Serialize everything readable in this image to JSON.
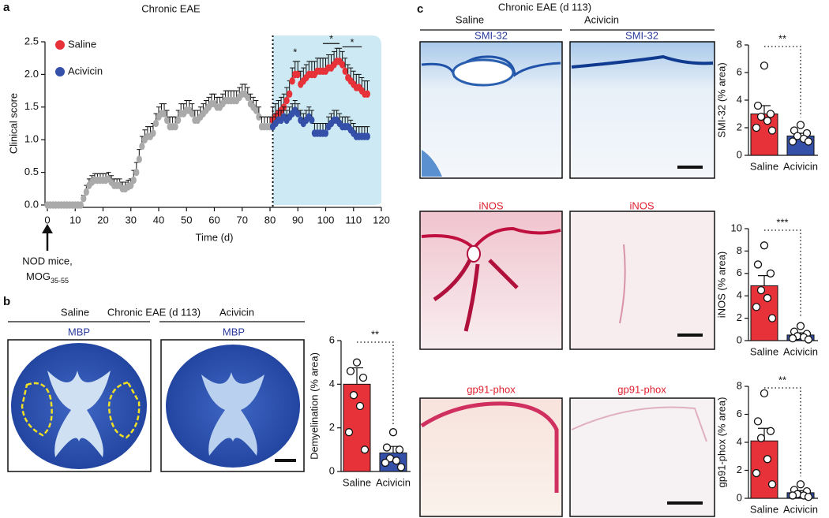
{
  "panel_labels": [
    "a",
    "b",
    "c"
  ],
  "panel_a": {
    "annotation": "NOD mice,",
    "antigen": "MOG",
    "antigen_sub": "35-55"
  },
  "panel_b": {
    "title": "Chronic EAE (d 113)",
    "groups": [
      "Saline",
      "Acivicin"
    ],
    "stain": "MBP"
  },
  "panel_c": {
    "title": "Chronic EAE (d 113)",
    "groups": [
      "Saline",
      "Acivicin"
    ],
    "stains": [
      "SMI-32",
      "iNOS",
      "gp91-phox"
    ]
  },
  "chart_data": [
    {
      "type": "line",
      "title": "Chronic EAE",
      "xlabel": "Time (d)",
      "ylabel": "Clinical score",
      "xlim": [
        0,
        120
      ],
      "xticks": [
        0,
        10,
        20,
        30,
        40,
        50,
        60,
        70,
        80,
        90,
        100,
        110,
        120
      ],
      "ylim": [
        0,
        2.5
      ],
      "yticks": [
        {
          "value": 0,
          "label": "0.0"
        },
        0.5,
        {
          "value": 1,
          "label": "1.0"
        },
        1.5,
        {
          "value": 2,
          "label": "2.0"
        },
        2.5
      ],
      "shaded": [
        81,
        120
      ],
      "significance": [
        {
          "label": "*",
          "x": [
            89,
            89
          ]
        },
        {
          "label": "*",
          "x": [
            99,
            105
          ]
        },
        {
          "label": "*",
          "x": [
            106,
            113
          ]
        }
      ],
      "series": [
        {
          "color": "#aaaaaa",
          "x": [
            0,
            1,
            2,
            3,
            4,
            5,
            6,
            7,
            8,
            9,
            10,
            11,
            12,
            13,
            14,
            15,
            16,
            17,
            18,
            19,
            20,
            21,
            22,
            23,
            24,
            25,
            26,
            27,
            28,
            29,
            30,
            31,
            32,
            33,
            34,
            35,
            36,
            37,
            38,
            39,
            40,
            41,
            42,
            43,
            44,
            45,
            46,
            47,
            48,
            49,
            50,
            51,
            52,
            53,
            54,
            55,
            56,
            57,
            58,
            59,
            60,
            61,
            62,
            63,
            64,
            65,
            66,
            67,
            68,
            69,
            70,
            71,
            72,
            73,
            74,
            75,
            76,
            77,
            78,
            79,
            80
          ],
          "values": [
            0,
            0,
            0,
            0,
            0,
            0,
            0,
            0,
            0,
            0,
            0,
            0,
            0,
            0.1,
            0.2,
            0.3,
            0.35,
            0.38,
            0.38,
            0.38,
            0.38,
            0.38,
            0.4,
            0.35,
            0.3,
            0.3,
            0.3,
            0.25,
            0.25,
            0.28,
            0.3,
            0.38,
            0.5,
            0.7,
            0.9,
            1.0,
            1.05,
            1.05,
            1.1,
            1.25,
            1.35,
            1.4,
            1.4,
            1.3,
            1.2,
            1.2,
            1.2,
            1.3,
            1.4,
            1.4,
            1.45,
            1.45,
            1.4,
            1.3,
            1.3,
            1.35,
            1.4,
            1.45,
            1.5,
            1.55,
            1.55,
            1.5,
            1.5,
            1.55,
            1.6,
            1.6,
            1.6,
            1.6,
            1.6,
            1.65,
            1.7,
            1.7,
            1.65,
            1.55,
            1.5,
            1.45,
            1.35,
            1.2,
            1.2,
            1.2,
            1.2
          ],
          "errors": [
            0,
            0,
            0,
            0,
            0,
            0,
            0,
            0,
            0,
            0,
            0,
            0,
            0,
            0.05,
            0.1,
            0.1,
            0.1,
            0.1,
            0.1,
            0.1,
            0.1,
            0.1,
            0.1,
            0.1,
            0.1,
            0.1,
            0.1,
            0.1,
            0.1,
            0.1,
            0.1,
            0.15,
            0.15,
            0.15,
            0.15,
            0.15,
            0.15,
            0.15,
            0.15,
            0.15,
            0.15,
            0.15,
            0.15,
            0.15,
            0.15,
            0.15,
            0.15,
            0.15,
            0.15,
            0.15,
            0.15,
            0.15,
            0.15,
            0.15,
            0.15,
            0.15,
            0.15,
            0.15,
            0.15,
            0.15,
            0.15,
            0.15,
            0.15,
            0.15,
            0.15,
            0.15,
            0.15,
            0.15,
            0.15,
            0.15,
            0.15,
            0.15,
            0.15,
            0.15,
            0.15,
            0.15,
            0.15,
            0.15,
            0.15,
            0.15,
            0.15
          ]
        },
        {
          "name": "Saline",
          "color": "#e8323a",
          "x": [
            81,
            82,
            83,
            84,
            85,
            86,
            87,
            88,
            89,
            90,
            91,
            92,
            93,
            94,
            95,
            96,
            97,
            98,
            99,
            100,
            101,
            102,
            103,
            104,
            105,
            106,
            107,
            108,
            109,
            110,
            111,
            112,
            113,
            114,
            115
          ],
          "values": [
            1.3,
            1.35,
            1.4,
            1.45,
            1.5,
            1.6,
            1.7,
            1.9,
            2.0,
            2.0,
            1.85,
            1.9,
            1.95,
            2.0,
            2.0,
            2.0,
            2.05,
            2.05,
            2.05,
            2.05,
            2.1,
            2.1,
            2.15,
            2.2,
            2.2,
            2.15,
            2.05,
            1.95,
            1.9,
            1.85,
            1.8,
            1.8,
            1.75,
            1.7,
            1.7
          ],
          "errors": [
            0.2,
            0.2,
            0.2,
            0.2,
            0.2,
            0.2,
            0.2,
            0.2,
            0.2,
            0.2,
            0.2,
            0.2,
            0.2,
            0.2,
            0.2,
            0.2,
            0.2,
            0.2,
            0.2,
            0.2,
            0.2,
            0.2,
            0.2,
            0.2,
            0.2,
            0.2,
            0.2,
            0.2,
            0.2,
            0.2,
            0.2,
            0.2,
            0.2,
            0.2,
            0.2
          ]
        },
        {
          "name": "Acivicin",
          "color": "#3550a8",
          "x": [
            81,
            82,
            83,
            84,
            85,
            86,
            87,
            88,
            89,
            90,
            91,
            92,
            93,
            94,
            95,
            96,
            97,
            98,
            99,
            100,
            101,
            102,
            103,
            104,
            105,
            106,
            107,
            108,
            109,
            110,
            111,
            112,
            113,
            114,
            115
          ],
          "values": [
            1.2,
            1.25,
            1.3,
            1.3,
            1.35,
            1.3,
            1.35,
            1.4,
            1.45,
            1.4,
            1.3,
            1.25,
            1.3,
            1.35,
            1.3,
            1.1,
            1.1,
            1.1,
            1.1,
            1.1,
            1.2,
            1.25,
            1.3,
            1.3,
            1.25,
            1.2,
            1.2,
            1.2,
            1.15,
            1.1,
            1.05,
            1.05,
            1.05,
            1.05,
            1.05
          ],
          "errors": [
            0.15,
            0.15,
            0.15,
            0.15,
            0.15,
            0.15,
            0.15,
            0.15,
            0.15,
            0.15,
            0.15,
            0.15,
            0.15,
            0.15,
            0.15,
            0.15,
            0.15,
            0.15,
            0.15,
            0.15,
            0.15,
            0.15,
            0.15,
            0.15,
            0.15,
            0.15,
            0.15,
            0.15,
            0.15,
            0.15,
            0.15,
            0.15,
            0.15,
            0.15,
            0.15
          ]
        }
      ]
    },
    {
      "type": "bar",
      "ylabel": "Demyelination (% area)",
      "categories": [
        "Saline",
        "Acivicin"
      ],
      "values": [
        4.0,
        0.85
      ],
      "errors": [
        0.75,
        0.3
      ],
      "points": [
        [
          5.0,
          4.6,
          4.3,
          3.5,
          3.0,
          1.8,
          1.0
        ],
        [
          1.8,
          1.1,
          1.0,
          0.6,
          0.5,
          0.4,
          0.2
        ]
      ],
      "colors": [
        "#e8323a",
        "#3550a8"
      ],
      "ylim": [
        0,
        6
      ],
      "yticks": [
        0,
        2,
        4,
        6
      ],
      "significance": "**"
    },
    {
      "type": "bar",
      "ylabel": "SMI-32 (% area)",
      "categories": [
        "Saline",
        "Acivicin"
      ],
      "values": [
        3.0,
        1.4
      ],
      "errors": [
        0.6,
        0.2
      ],
      "points": [
        [
          6.5,
          3.6,
          3.0,
          2.8,
          2.5,
          2.0,
          1.8
        ],
        [
          2.2,
          1.8,
          1.6,
          1.4,
          1.2,
          1.0,
          1.0
        ]
      ],
      "colors": [
        "#e8323a",
        "#3550a8"
      ],
      "ylim": [
        0,
        8
      ],
      "yticks": [
        0,
        2,
        4,
        6,
        8
      ],
      "significance": "**"
    },
    {
      "type": "bar",
      "ylabel": "iNOS (% area)",
      "categories": [
        "Saline",
        "Acivicin"
      ],
      "values": [
        4.9,
        0.5
      ],
      "errors": [
        0.9,
        0.2
      ],
      "points": [
        [
          8.5,
          6.8,
          6.0,
          4.5,
          3.8,
          3.0,
          2.0
        ],
        [
          1.3,
          0.8,
          0.6,
          0.4,
          0.3,
          0.2,
          0.1
        ]
      ],
      "colors": [
        "#e8323a",
        "#3550a8"
      ],
      "ylim": [
        0,
        10
      ],
      "yticks": [
        0,
        2,
        4,
        6,
        8,
        10
      ],
      "significance": "***"
    },
    {
      "type": "bar",
      "ylabel": "gp91-phox (% area)",
      "categories": [
        "Saline",
        "Acivicin"
      ],
      "values": [
        4.1,
        0.4
      ],
      "errors": [
        0.9,
        0.15
      ],
      "points": [
        [
          7.5,
          5.5,
          4.8,
          4.3,
          2.8,
          1.8,
          1.0
        ],
        [
          1.0,
          0.6,
          0.5,
          0.3,
          0.2,
          0.2,
          0.1
        ]
      ],
      "colors": [
        "#e8323a",
        "#3550a8"
      ],
      "ylim": [
        0,
        8
      ],
      "yticks": [
        0,
        2,
        4,
        6,
        8
      ],
      "significance": "**"
    }
  ]
}
